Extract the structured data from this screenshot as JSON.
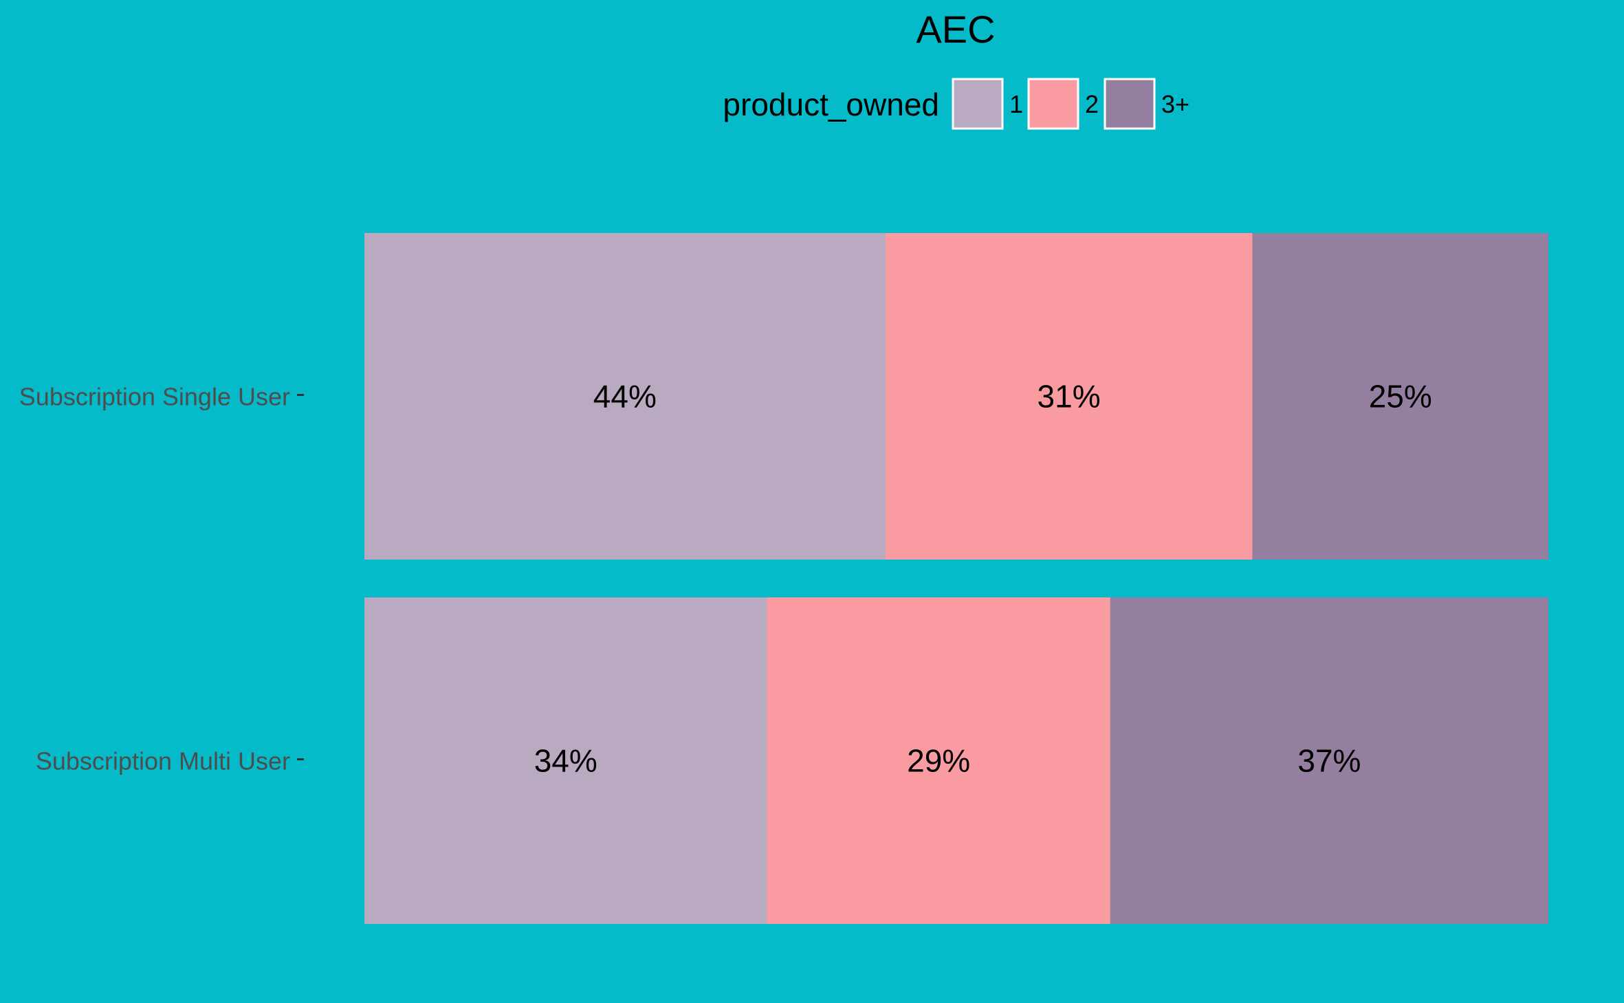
{
  "chart_data": {
    "type": "bar",
    "orientation": "horizontal",
    "stacked": "percent",
    "title": "AEC",
    "xlabel": "",
    "ylabel": "",
    "grid": false,
    "background_color": "#05bbc9",
    "legend": {
      "title": "product_owned",
      "position": "top"
    },
    "categories": [
      "Subscription Single User",
      "Subscription Multi User"
    ],
    "series": [
      {
        "name": "1",
        "color": "#b9aac2",
        "values": [
          44,
          34
        ],
        "labels": [
          "44%",
          "34%"
        ]
      },
      {
        "name": "2",
        "color": "#fa9aa1",
        "values": [
          31,
          29
        ],
        "labels": [
          "31%",
          "29%"
        ]
      },
      {
        "name": "3+",
        "color": "#947fa1",
        "values": [
          25,
          37
        ],
        "labels": [
          "25%",
          "37%"
        ]
      }
    ],
    "xlim": [
      0,
      100
    ]
  }
}
